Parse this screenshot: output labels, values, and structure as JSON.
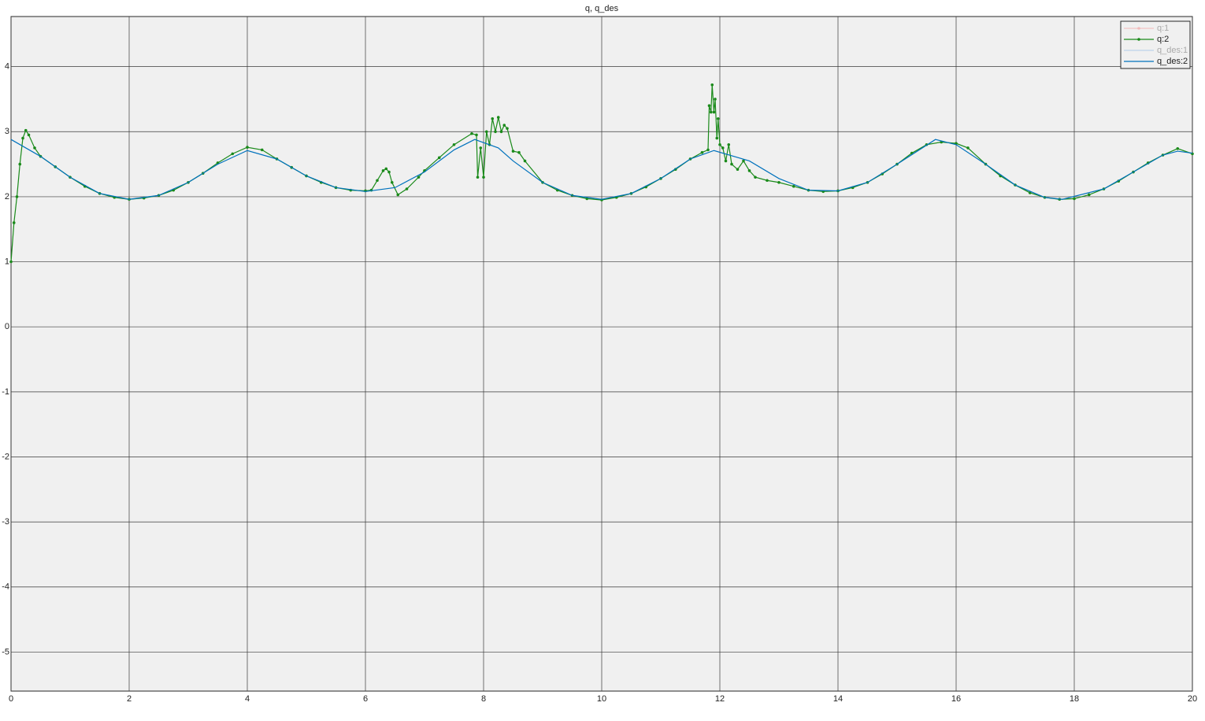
{
  "chart_data": {
    "type": "line",
    "title": "q, q_des",
    "xlim": [
      0,
      20
    ],
    "ylim": [
      -5.6,
      4.77
    ],
    "xticks": [
      0,
      2,
      4,
      6,
      8,
      10,
      12,
      14,
      16,
      18,
      20
    ],
    "yticks": [
      -5,
      -4,
      -3,
      -2,
      -1,
      0,
      1,
      2,
      3,
      4
    ],
    "grid": true,
    "legend": "top-right",
    "series": [
      {
        "name": "q:1",
        "color": "#f4a6a6",
        "visible": false,
        "markers": true
      },
      {
        "name": "q:2",
        "color": "#1a8a1a",
        "visible": true,
        "markers": true,
        "x": [
          0,
          0.05,
          0.1,
          0.15,
          0.2,
          0.25,
          0.3,
          0.4,
          0.5,
          0.75,
          1,
          1.25,
          1.5,
          1.75,
          2,
          2.25,
          2.5,
          2.75,
          3,
          3.25,
          3.5,
          3.75,
          4,
          4.25,
          4.5,
          4.75,
          5,
          5.25,
          5.5,
          5.75,
          6,
          6.1,
          6.2,
          6.3,
          6.35,
          6.4,
          6.45,
          6.55,
          6.7,
          6.9,
          7,
          7.25,
          7.5,
          7.8,
          7.88,
          7.9,
          7.95,
          8,
          8.05,
          8.1,
          8.15,
          8.2,
          8.25,
          8.3,
          8.35,
          8.4,
          8.5,
          8.6,
          8.7,
          9,
          9.25,
          9.5,
          9.75,
          10,
          10.25,
          10.5,
          10.75,
          11,
          11.25,
          11.5,
          11.7,
          11.8,
          11.82,
          11.85,
          11.87,
          11.9,
          11.92,
          11.95,
          11.97,
          12,
          12.05,
          12.1,
          12.15,
          12.2,
          12.3,
          12.4,
          12.5,
          12.6,
          12.8,
          13,
          13.25,
          13.5,
          13.75,
          14,
          14.25,
          14.5,
          14.75,
          15,
          15.25,
          15.5,
          15.75,
          16,
          16.2,
          16.5,
          16.75,
          17,
          17.25,
          17.5,
          17.75,
          18,
          18.25,
          18.5,
          18.75,
          19,
          19.25,
          19.5,
          19.75,
          20
        ],
        "values": [
          1.0,
          1.6,
          2.0,
          2.5,
          2.9,
          3.02,
          2.95,
          2.75,
          2.62,
          2.46,
          2.3,
          2.16,
          2.05,
          1.99,
          1.96,
          1.98,
          2.02,
          2.1,
          2.22,
          2.36,
          2.52,
          2.66,
          2.76,
          2.72,
          2.58,
          2.45,
          2.32,
          2.22,
          2.14,
          2.1,
          2.09,
          2.1,
          2.25,
          2.4,
          2.43,
          2.38,
          2.22,
          2.03,
          2.12,
          2.3,
          2.4,
          2.6,
          2.8,
          2.97,
          2.95,
          2.3,
          2.75,
          2.3,
          3.0,
          2.8,
          3.2,
          3.0,
          3.22,
          3.0,
          3.1,
          3.05,
          2.7,
          2.68,
          2.55,
          2.22,
          2.1,
          2.02,
          1.97,
          1.95,
          1.99,
          2.05,
          2.15,
          2.28,
          2.42,
          2.58,
          2.68,
          2.72,
          3.4,
          3.3,
          3.72,
          3.3,
          3.5,
          2.9,
          3.2,
          2.8,
          2.75,
          2.55,
          2.8,
          2.5,
          2.42,
          2.55,
          2.4,
          2.3,
          2.25,
          2.22,
          2.16,
          2.1,
          2.08,
          2.09,
          2.14,
          2.22,
          2.35,
          2.5,
          2.67,
          2.8,
          2.84,
          2.82,
          2.75,
          2.5,
          2.32,
          2.18,
          2.06,
          1.99,
          1.96,
          1.97,
          2.03,
          2.12,
          2.24,
          2.38,
          2.52,
          2.64,
          2.74,
          2.66
        ]
      },
      {
        "name": "q_des:1",
        "color": "#9cc3e6",
        "visible": false,
        "markers": false
      },
      {
        "name": "q_des:2",
        "color": "#0072bd",
        "visible": true,
        "markers": false,
        "x": [
          0,
          0.5,
          1,
          1.5,
          2,
          2.5,
          3,
          3.5,
          4,
          4.5,
          5,
          5.5,
          6,
          6.5,
          7,
          7.5,
          7.85,
          8.25,
          8.5,
          9,
          9.5,
          10,
          10.5,
          11,
          11.5,
          11.9,
          12.5,
          13,
          13.5,
          14,
          14.5,
          15,
          15.65,
          16,
          16.5,
          17,
          17.5,
          17.8,
          18.5,
          19,
          19.5,
          19.75,
          20
        ],
        "values": [
          2.88,
          2.62,
          2.3,
          2.05,
          1.96,
          2.02,
          2.22,
          2.5,
          2.71,
          2.58,
          2.32,
          2.14,
          2.08,
          2.14,
          2.38,
          2.72,
          2.88,
          2.75,
          2.55,
          2.22,
          2.02,
          1.96,
          2.05,
          2.28,
          2.58,
          2.71,
          2.55,
          2.28,
          2.1,
          2.09,
          2.22,
          2.5,
          2.88,
          2.8,
          2.5,
          2.18,
          1.99,
          1.96,
          2.12,
          2.38,
          2.64,
          2.7,
          2.67
        ]
      }
    ]
  }
}
